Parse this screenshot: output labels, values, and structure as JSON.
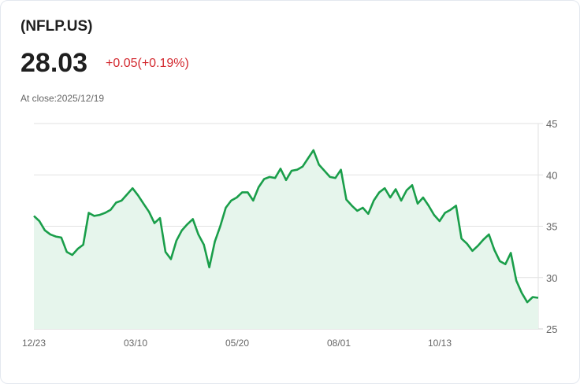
{
  "header": {
    "ticker": "(NFLP.US)",
    "price": "28.03",
    "change": "+0.05(+0.19%)",
    "close_label": "At close:2025/12/19"
  },
  "colors": {
    "line": "#1a9e4a",
    "fill": "#e6f5ec",
    "change": "#d3292f"
  },
  "chart_data": {
    "type": "area",
    "title": "NFLP.US",
    "xlabel": "",
    "ylabel": "",
    "ylim": [
      25,
      45
    ],
    "yticks": [
      45,
      40,
      35,
      30,
      25
    ],
    "xticks": [
      "12/23",
      "03/10",
      "05/20",
      "08/01",
      "10/13"
    ],
    "grid": true,
    "values": [
      36.0,
      35.5,
      34.6,
      34.2,
      34.0,
      33.9,
      32.5,
      32.2,
      32.8,
      33.2,
      36.3,
      36.0,
      36.1,
      36.3,
      36.6,
      37.3,
      37.5,
      38.1,
      38.7,
      38.0,
      37.2,
      36.4,
      35.3,
      35.8,
      32.5,
      31.8,
      33.6,
      34.6,
      35.2,
      35.7,
      34.2,
      33.2,
      31.0,
      33.5,
      35.0,
      36.8,
      37.5,
      37.8,
      38.3,
      38.3,
      37.5,
      38.8,
      39.6,
      39.8,
      39.7,
      40.6,
      39.5,
      40.4,
      40.5,
      40.8,
      41.6,
      42.4,
      41.0,
      40.4,
      39.8,
      39.7,
      40.5,
      37.6,
      37.0,
      36.5,
      36.8,
      36.2,
      37.5,
      38.3,
      38.7,
      37.8,
      38.6,
      37.5,
      38.5,
      39.0,
      37.2,
      37.8,
      37.0,
      36.1,
      35.5,
      36.3,
      36.6,
      37.0,
      33.8,
      33.3,
      32.6,
      33.1,
      33.7,
      34.2,
      32.7,
      31.6,
      31.3,
      32.4,
      29.7,
      28.5,
      27.6,
      28.1,
      28.03
    ]
  },
  "axes": {
    "y": [
      "45",
      "40",
      "35",
      "30",
      "25"
    ],
    "x": [
      "12/23",
      "03/10",
      "05/20",
      "08/01",
      "10/13"
    ]
  }
}
